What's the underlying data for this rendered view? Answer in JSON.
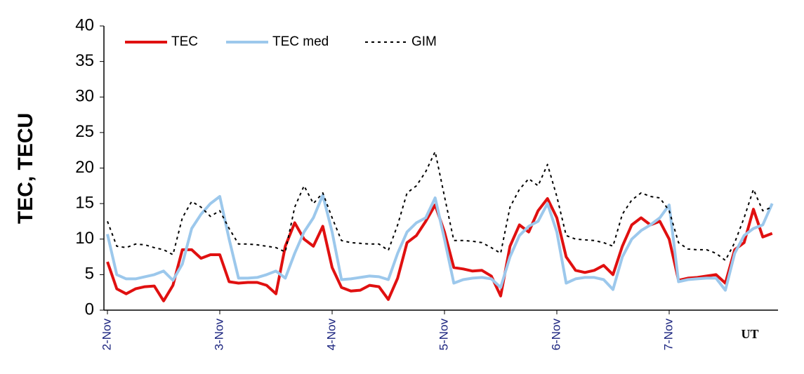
{
  "chart_data": {
    "type": "line",
    "ylabel": "TEC, TECU",
    "xlabel": "UT",
    "x": [
      0,
      2,
      4,
      6,
      8,
      10,
      12,
      14,
      16,
      18,
      20,
      22,
      24,
      26,
      28,
      30,
      32,
      34,
      36,
      38,
      40,
      42,
      44,
      46,
      48,
      50,
      52,
      54,
      56,
      58,
      60,
      62,
      64,
      66,
      68,
      70,
      72,
      74,
      76,
      78,
      80,
      82,
      84,
      86,
      88,
      90,
      92,
      94,
      96,
      98,
      100,
      102,
      104,
      106,
      108,
      110,
      112,
      114,
      116,
      118,
      120,
      122,
      124,
      126,
      128,
      130,
      132,
      134,
      136,
      138,
      140,
      142
    ],
    "xlim": [
      0,
      144
    ],
    "xticks": [
      {
        "value": 0,
        "label": "2-Nov"
      },
      {
        "value": 24,
        "label": "3-Nov"
      },
      {
        "value": 48,
        "label": "4-Nov"
      },
      {
        "value": 72,
        "label": "5-Nov"
      },
      {
        "value": 96,
        "label": "6-Nov"
      },
      {
        "value": 120,
        "label": "7-Nov"
      }
    ],
    "ylim": [
      0,
      40
    ],
    "yticks": [
      0,
      5,
      10,
      15,
      20,
      25,
      30,
      35,
      40
    ],
    "grid": false,
    "legend": "top-left",
    "series": [
      {
        "name": "TEC",
        "color": "#e01010",
        "style": "solid",
        "values": [
          6.8,
          3.0,
          2.3,
          3.0,
          3.3,
          3.4,
          1.3,
          3.5,
          8.5,
          8.5,
          7.3,
          7.8,
          7.8,
          4.0,
          3.8,
          3.9,
          3.9,
          3.5,
          2.3,
          9,
          12.3,
          10,
          9,
          11.8,
          6,
          3.2,
          2.7,
          2.8,
          3.5,
          3.3,
          1.5,
          4.5,
          9.5,
          10.5,
          12.5,
          14.8,
          11,
          6,
          5.8,
          5.5,
          5.6,
          4.8,
          2.0,
          9,
          12,
          11,
          14,
          15.7,
          13,
          7.5,
          5.6,
          5.3,
          5.6,
          6.3,
          5,
          9,
          12,
          13,
          12,
          12.5,
          10,
          4.2,
          4.5,
          4.6,
          4.8,
          5,
          3.8,
          8.5,
          9.5,
          14.2,
          10.3,
          10.8
        ]
      },
      {
        "name": "TEC med",
        "color": "#9cc8ec",
        "style": "solid",
        "values": [
          10.7,
          5,
          4.4,
          4.4,
          4.7,
          5.0,
          5.5,
          4.2,
          6.5,
          11.5,
          13.5,
          15,
          16,
          10,
          4.5,
          4.5,
          4.6,
          5,
          5.5,
          4.5,
          8,
          11,
          13,
          16.2,
          11,
          4.3,
          4.4,
          4.6,
          4.8,
          4.7,
          4.3,
          8,
          11,
          12.3,
          13,
          15.8,
          10,
          3.8,
          4.3,
          4.5,
          4.6,
          4.4,
          3.2,
          7.5,
          10.5,
          11.8,
          12.5,
          15,
          11,
          3.8,
          4.4,
          4.6,
          4.6,
          4.3,
          2.9,
          7.5,
          10,
          11.2,
          12,
          13,
          14.8,
          4,
          4.3,
          4.4,
          4.5,
          4.5,
          2.8,
          8,
          10.5,
          11.5,
          12,
          15
        ]
      },
      {
        "name": "GIM",
        "color": "#000000",
        "style": "dashed",
        "values": [
          12.5,
          9,
          8.8,
          9.3,
          9.2,
          8.8,
          8.5,
          7.8,
          13,
          15.3,
          14.5,
          13.2,
          14,
          11.5,
          9.3,
          9.3,
          9.2,
          9,
          8.8,
          8.2,
          14.5,
          17.5,
          15,
          16.5,
          13,
          9.8,
          9.5,
          9.4,
          9.3,
          9.3,
          8.4,
          12,
          16.5,
          17.5,
          19.5,
          22.3,
          16,
          9.8,
          9.8,
          9.7,
          9.5,
          8.8,
          8,
          14.5,
          17,
          18.5,
          17.5,
          20.5,
          16,
          10.5,
          10,
          9.9,
          9.8,
          9.5,
          9,
          13.5,
          15.5,
          16.5,
          16,
          15.8,
          14,
          9.5,
          8.6,
          8.5,
          8.5,
          8,
          7,
          9.5,
          13,
          17,
          14,
          14.5
        ]
      }
    ]
  }
}
